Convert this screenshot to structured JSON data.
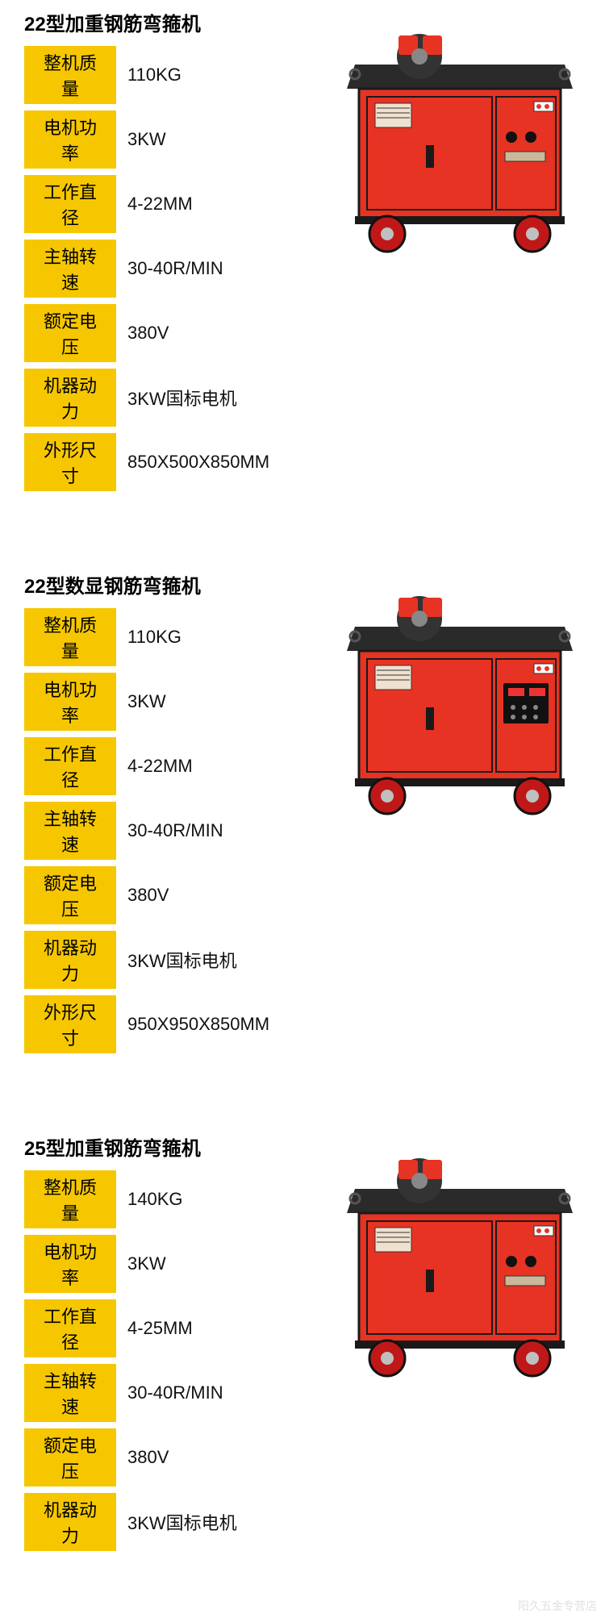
{
  "colors": {
    "label_bg": "#f6c700",
    "machine_body": "#e73323",
    "machine_top": "#2a2a2a",
    "machine_trim": "#1a1a1a",
    "wheel": "#c01818",
    "wheel_cap": "#bfbfbf",
    "panel": "#efe0cf",
    "digital": "#111"
  },
  "watermark": "阳久五金专营店",
  "products": [
    {
      "title": "22型加重钢筋弯箍机",
      "machine_variant": "basic",
      "specs": [
        {
          "label": "整机质量",
          "value": "110KG"
        },
        {
          "label": "电机功率",
          "value": "3KW"
        },
        {
          "label": "工作直径",
          "value": "4-22MM"
        },
        {
          "label": "主轴转速",
          "value": "30-40R/MIN"
        },
        {
          "label": "额定电压",
          "value": "380V"
        },
        {
          "label": "机器动力",
          "value": "3KW国标电机"
        },
        {
          "label": "外形尺寸",
          "value": "850X500X850MM"
        }
      ]
    },
    {
      "title": "22型数显钢筋弯箍机",
      "machine_variant": "digital",
      "specs": [
        {
          "label": "整机质量",
          "value": "110KG"
        },
        {
          "label": "电机功率",
          "value": "3KW"
        },
        {
          "label": "工作直径",
          "value": "4-22MM"
        },
        {
          "label": "主轴转速",
          "value": "30-40R/MIN"
        },
        {
          "label": "额定电压",
          "value": "380V"
        },
        {
          "label": "机器动力",
          "value": "3KW国标电机"
        },
        {
          "label": "外形尺寸",
          "value": "950X950X850MM"
        }
      ]
    },
    {
      "title": "25型加重钢筋弯箍机",
      "machine_variant": "basic",
      "specs": [
        {
          "label": "整机质量",
          "value": "140KG"
        },
        {
          "label": "电机功率",
          "value": "3KW"
        },
        {
          "label": "工作直径",
          "value": "4-25MM"
        },
        {
          "label": "主轴转速",
          "value": "30-40R/MIN"
        },
        {
          "label": "额定电压",
          "value": "380V"
        },
        {
          "label": "机器动力",
          "value": "3KW国标电机"
        }
      ]
    }
  ]
}
